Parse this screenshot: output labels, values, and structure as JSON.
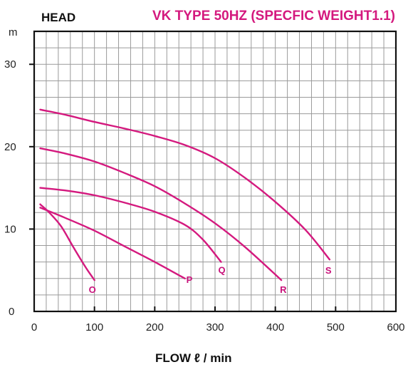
{
  "chart_data": {
    "type": "line",
    "title": "VK TYPE 50HZ (SPECFIC WEIGHT1.1)",
    "ylabel": "HEAD",
    "y_unit": "m",
    "xlabel": "FLOW ℓ / min",
    "xlim": [
      0,
      600
    ],
    "ylim": [
      0,
      34
    ],
    "x_ticks": [
      0,
      100,
      200,
      300,
      400,
      500,
      600
    ],
    "y_ticks": [
      0,
      10,
      20,
      30
    ],
    "grid": true,
    "colors": {
      "curve": "#d4197e",
      "title": "#d4197e",
      "grid": "#9a9a9a",
      "axis": "#111111"
    },
    "series": [
      {
        "name": "O",
        "x": [
          10,
          25,
          45,
          65,
          85,
          100
        ],
        "y": [
          13.0,
          12.0,
          10.3,
          7.8,
          5.4,
          3.8
        ]
      },
      {
        "name": "P",
        "x": [
          10,
          50,
          100,
          150,
          200,
          250
        ],
        "y": [
          12.6,
          11.4,
          9.8,
          7.9,
          6.0,
          4.0
        ]
      },
      {
        "name": "Q",
        "x": [
          10,
          50,
          100,
          150,
          200,
          250,
          280,
          310
        ],
        "y": [
          15.0,
          14.7,
          14.1,
          13.2,
          12.1,
          10.5,
          8.7,
          6.0
        ]
      },
      {
        "name": "R",
        "x": [
          10,
          50,
          100,
          150,
          200,
          250,
          300,
          350,
          410
        ],
        "y": [
          19.8,
          19.2,
          18.2,
          16.8,
          15.2,
          13.1,
          10.7,
          7.8,
          3.8
        ]
      },
      {
        "name": "S",
        "x": [
          10,
          50,
          100,
          150,
          200,
          250,
          300,
          350,
          400,
          450,
          490
        ],
        "y": [
          24.5,
          23.9,
          23.0,
          22.2,
          21.3,
          20.2,
          18.6,
          16.2,
          13.3,
          9.9,
          6.3
        ]
      }
    ]
  }
}
